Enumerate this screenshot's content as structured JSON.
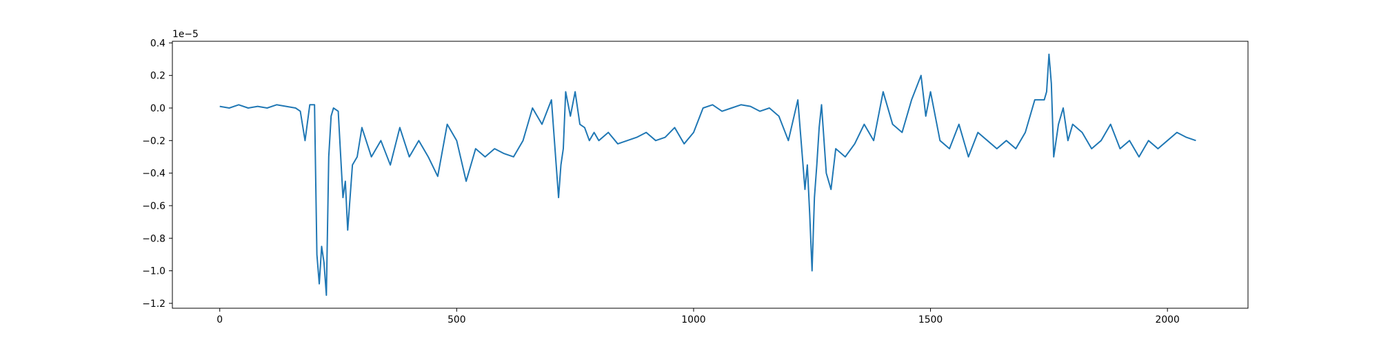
{
  "chart_data": {
    "type": "line",
    "title": "",
    "xlabel": "",
    "ylabel": "",
    "y_offset_text": "1e−5",
    "y_scale_note": "values in units of 1e-5",
    "xlim": [
      -100,
      2170
    ],
    "ylim": [
      -1.23,
      0.41
    ],
    "x_ticks": [
      0,
      500,
      1000,
      1500,
      2000
    ],
    "x_tick_labels": [
      "0",
      "500",
      "1000",
      "1500",
      "2000"
    ],
    "y_ticks": [
      0.4,
      0.2,
      0.0,
      -0.2,
      -0.4,
      -0.6,
      -0.8,
      -1.0,
      -1.2
    ],
    "y_tick_labels": [
      "0.4",
      "0.2",
      "0.0",
      "−0.2",
      "−0.4",
      "−0.6",
      "−0.8",
      "−1.0",
      "−1.2"
    ],
    "grid": false,
    "legend": "none",
    "series": [
      {
        "color": "#1f77b4",
        "x": [
          0,
          20,
          40,
          60,
          80,
          100,
          120,
          140,
          160,
          170,
          180,
          190,
          200,
          205,
          210,
          215,
          220,
          225,
          230,
          235,
          240,
          250,
          260,
          265,
          270,
          280,
          290,
          300,
          320,
          340,
          360,
          380,
          400,
          420,
          440,
          460,
          480,
          500,
          520,
          540,
          560,
          580,
          600,
          620,
          640,
          660,
          680,
          700,
          715,
          720,
          725,
          730,
          740,
          750,
          760,
          770,
          780,
          790,
          800,
          820,
          840,
          860,
          880,
          900,
          920,
          940,
          960,
          980,
          1000,
          1020,
          1040,
          1060,
          1080,
          1100,
          1120,
          1140,
          1160,
          1180,
          1200,
          1220,
          1235,
          1240,
          1245,
          1250,
          1255,
          1260,
          1265,
          1270,
          1280,
          1290,
          1300,
          1320,
          1340,
          1360,
          1380,
          1400,
          1420,
          1440,
          1460,
          1480,
          1490,
          1500,
          1520,
          1540,
          1560,
          1580,
          1600,
          1620,
          1640,
          1660,
          1680,
          1700,
          1720,
          1740,
          1745,
          1750,
          1755,
          1760,
          1770,
          1780,
          1790,
          1800,
          1820,
          1840,
          1860,
          1880,
          1900,
          1920,
          1940,
          1960,
          1980,
          2000,
          2020,
          2040,
          2060
        ],
        "y": [
          0.01,
          0.0,
          0.02,
          0.0,
          0.01,
          0.0,
          0.02,
          0.01,
          0.0,
          -0.02,
          -0.2,
          0.02,
          0.02,
          -0.9,
          -1.08,
          -0.85,
          -0.95,
          -1.15,
          -0.3,
          -0.05,
          0.0,
          -0.02,
          -0.55,
          -0.45,
          -0.75,
          -0.35,
          -0.3,
          -0.12,
          -0.3,
          -0.2,
          -0.35,
          -0.12,
          -0.3,
          -0.2,
          -0.3,
          -0.42,
          -0.1,
          -0.2,
          -0.45,
          -0.25,
          -0.3,
          -0.25,
          -0.28,
          -0.3,
          -0.2,
          0.0,
          -0.1,
          0.05,
          -0.55,
          -0.35,
          -0.25,
          0.1,
          -0.05,
          0.1,
          -0.1,
          -0.12,
          -0.2,
          -0.15,
          -0.2,
          -0.15,
          -0.22,
          -0.2,
          -0.18,
          -0.15,
          -0.2,
          -0.18,
          -0.12,
          -0.22,
          -0.15,
          0.0,
          0.02,
          -0.02,
          0.0,
          0.02,
          0.01,
          -0.02,
          0.0,
          -0.05,
          -0.2,
          0.05,
          -0.5,
          -0.35,
          -0.65,
          -1.0,
          -0.55,
          -0.35,
          -0.12,
          0.02,
          -0.4,
          -0.5,
          -0.25,
          -0.3,
          -0.22,
          -0.1,
          -0.2,
          0.1,
          -0.1,
          -0.15,
          0.05,
          0.2,
          -0.05,
          0.1,
          -0.2,
          -0.25,
          -0.1,
          -0.3,
          -0.15,
          -0.2,
          -0.25,
          -0.2,
          -0.25,
          -0.15,
          0.05,
          0.05,
          0.1,
          0.33,
          0.15,
          -0.3,
          -0.1,
          0.0,
          -0.2,
          -0.1,
          -0.15,
          -0.25,
          -0.2,
          -0.1,
          -0.25,
          -0.2,
          -0.3,
          -0.2,
          -0.25,
          -0.2,
          -0.15,
          -0.18,
          -0.2
        ]
      }
    ]
  }
}
